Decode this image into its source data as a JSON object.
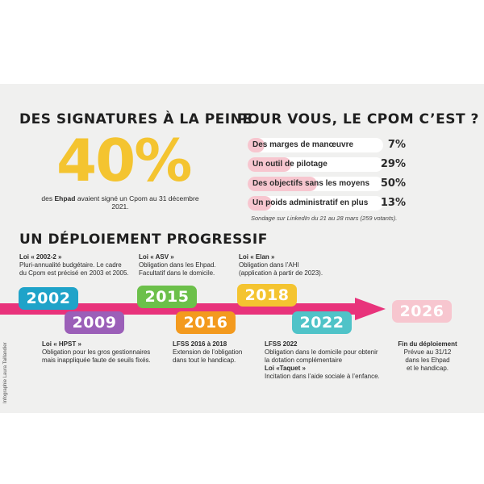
{
  "left": {
    "heading": "DES SIGNATURES À LA PEINE",
    "big_percent": "40%",
    "caption_pre": "des",
    "caption_bold": "Ehpad",
    "caption_post": "avaient signé un Cpom au 31 décembre 2021."
  },
  "right": {
    "heading": "POUR VOUS, LE CPOM C’EST ?",
    "rows": [
      {
        "label": "Des marges de manœuvre",
        "value": "7%",
        "percent": 7
      },
      {
        "label": "Un outil de pilotage",
        "value": "29%",
        "percent": 29
      },
      {
        "label": "Des objectifs sans les moyens",
        "value": "50%",
        "percent": 50
      },
      {
        "label": "Un poids administratif en plus",
        "value": "13%",
        "percent": 13
      }
    ],
    "note": "Sondage sur LinkedIn du 21 au 28 mars (259 votants)."
  },
  "timeline": {
    "heading": "UN DÉPLOIEMENT PROGRESSIF",
    "years": [
      {
        "label": "2002",
        "color": "#1fa3c9"
      },
      {
        "label": "2009",
        "color": "#9b5fb8"
      },
      {
        "label": "2015",
        "color": "#6cc04a"
      },
      {
        "label": "2016",
        "color": "#f39a1e"
      },
      {
        "label": "2018",
        "color": "#f4c430"
      },
      {
        "label": "2022",
        "color": "#4fc3c8"
      },
      {
        "label": "2026",
        "color": "#f7c6cf"
      }
    ],
    "laws": {
      "l2002": {
        "title": "Loi « 2002-2 »",
        "lines": [
          "Pluri-annualité budgétaire. Le cadre",
          "du Cpom est précisé en 2003 et 2005."
        ]
      },
      "l2015": {
        "title": "Loi « ASV »",
        "lines": [
          "Obligation dans les Ehpad.",
          "Facultatif dans le domicile."
        ]
      },
      "l2018": {
        "title": "Loi « Elan »",
        "lines": [
          "Obligation dans l’AHI",
          "(application à partir de 2023)."
        ]
      },
      "l2009": {
        "title": "Loi « HPST »",
        "lines": [
          "Obligation pour les gros gestionnaires",
          "mais inappliquée faute de seuils fixés."
        ]
      },
      "l2016": {
        "title": "LFSS 2016 à 2018",
        "lines": [
          "Extension de l’obligation",
          "dans tout le handicap."
        ]
      },
      "l2022": {
        "title": "LFSS 2022",
        "lines": [
          "Obligation dans le domicile pour obtenir",
          "la dotation complémentaire"
        ],
        "title2": "Loi «Taquet »",
        "line2": "Incitation dans l’aide sociale à l’enfance."
      },
      "l2026": {
        "title": "Fin du déploiement",
        "lines": [
          "Prévue au 31/12",
          "dans les Ehpad",
          "et le handicap."
        ]
      }
    }
  },
  "credit": "Infographie Laura Taillandier"
}
